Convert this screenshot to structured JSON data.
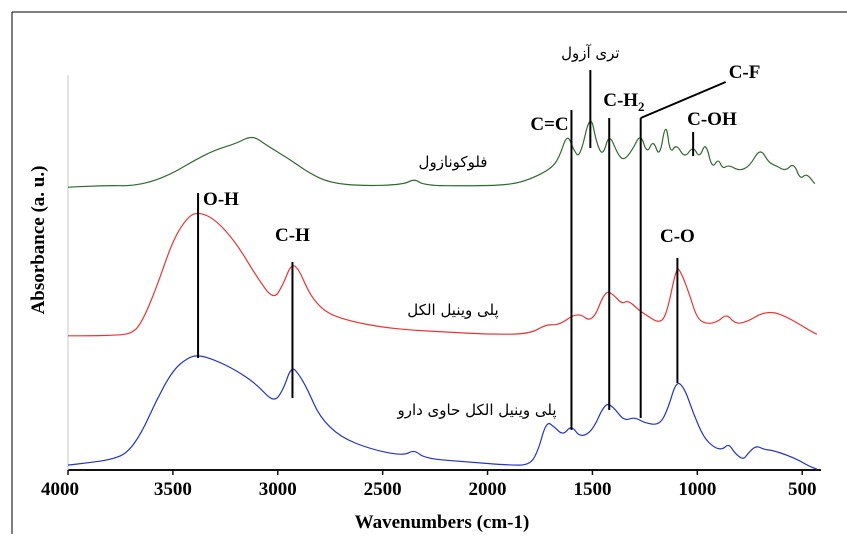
{
  "chart_data": {
    "type": "line",
    "xlabel": "Wavenumbers (cm-1)",
    "ylabel": "Absorbance (a. u.)",
    "xlim": [
      4000,
      420
    ],
    "x_reversed": true,
    "x_ticks": [
      "4000",
      "3500",
      "3000",
      "2500",
      "2000",
      "1500",
      "1000",
      "500"
    ],
    "x_tick_values": [
      4000,
      3500,
      3000,
      2500,
      2000,
      1500,
      1000,
      500
    ],
    "ylim": [
      0,
      1
    ],
    "y_ticks_shown": false,
    "grid": false,
    "series": [
      {
        "name": "فلوکونازول",
        "color": "#2e6b2e",
        "points": [
          [
            4000,
            0.702
          ],
          [
            3900,
            0.704
          ],
          [
            3800,
            0.706
          ],
          [
            3700,
            0.705
          ],
          [
            3600,
            0.715
          ],
          [
            3500,
            0.735
          ],
          [
            3400,
            0.765
          ],
          [
            3300,
            0.79
          ],
          [
            3200,
            0.805
          ],
          [
            3120,
            0.825
          ],
          [
            3050,
            0.8
          ],
          [
            2950,
            0.77
          ],
          [
            2850,
            0.735
          ],
          [
            2750,
            0.712
          ],
          [
            2600,
            0.705
          ],
          [
            2400,
            0.708
          ],
          [
            2350,
            0.722
          ],
          [
            2300,
            0.706
          ],
          [
            2100,
            0.705
          ],
          [
            1900,
            0.707
          ],
          [
            1800,
            0.72
          ],
          [
            1700,
            0.745
          ],
          [
            1660,
            0.77
          ],
          [
            1620,
            0.83
          ],
          [
            1590,
            0.79
          ],
          [
            1560,
            0.77
          ],
          [
            1510,
            0.88
          ],
          [
            1480,
            0.805
          ],
          [
            1450,
            0.775
          ],
          [
            1420,
            0.83
          ],
          [
            1380,
            0.78
          ],
          [
            1350,
            0.765
          ],
          [
            1310,
            0.79
          ],
          [
            1270,
            0.83
          ],
          [
            1240,
            0.78
          ],
          [
            1210,
            0.815
          ],
          [
            1180,
            0.77
          ],
          [
            1150,
            0.86
          ],
          [
            1130,
            0.78
          ],
          [
            1100,
            0.805
          ],
          [
            1060,
            0.77
          ],
          [
            1020,
            0.8
          ],
          [
            990,
            0.77
          ],
          [
            960,
            0.81
          ],
          [
            930,
            0.745
          ],
          [
            900,
            0.77
          ],
          [
            880,
            0.745
          ],
          [
            850,
            0.755
          ],
          [
            800,
            0.74
          ],
          [
            750,
            0.752
          ],
          [
            700,
            0.795
          ],
          [
            660,
            0.76
          ],
          [
            620,
            0.752
          ],
          [
            580,
            0.74
          ],
          [
            540,
            0.76
          ],
          [
            510,
            0.72
          ],
          [
            480,
            0.735
          ],
          [
            440,
            0.71
          ]
        ]
      },
      {
        "name": "پلی وینیل الکل",
        "color": "#ee3333",
        "points": [
          [
            4000,
            0.348
          ],
          [
            3900,
            0.348
          ],
          [
            3800,
            0.349
          ],
          [
            3700,
            0.352
          ],
          [
            3650,
            0.38
          ],
          [
            3580,
            0.47
          ],
          [
            3500,
            0.595
          ],
          [
            3430,
            0.655
          ],
          [
            3380,
            0.668
          ],
          [
            3300,
            0.65
          ],
          [
            3200,
            0.59
          ],
          [
            3100,
            0.5
          ],
          [
            3020,
            0.44
          ],
          [
            2975,
            0.48
          ],
          [
            2935,
            0.535
          ],
          [
            2900,
            0.52
          ],
          [
            2860,
            0.47
          ],
          [
            2820,
            0.435
          ],
          [
            2760,
            0.405
          ],
          [
            2650,
            0.385
          ],
          [
            2500,
            0.37
          ],
          [
            2350,
            0.362
          ],
          [
            2200,
            0.358
          ],
          [
            2000,
            0.352
          ],
          [
            1800,
            0.352
          ],
          [
            1720,
            0.378
          ],
          [
            1660,
            0.375
          ],
          [
            1570,
            0.41
          ],
          [
            1500,
            0.38
          ],
          [
            1440,
            0.465
          ],
          [
            1400,
            0.455
          ],
          [
            1360,
            0.43
          ],
          [
            1330,
            0.44
          ],
          [
            1280,
            0.415
          ],
          [
            1240,
            0.4
          ],
          [
            1180,
            0.38
          ],
          [
            1145,
            0.405
          ],
          [
            1100,
            0.525
          ],
          [
            1080,
            0.515
          ],
          [
            1040,
            0.46
          ],
          [
            1000,
            0.39
          ],
          [
            950,
            0.378
          ],
          [
            900,
            0.385
          ],
          [
            860,
            0.405
          ],
          [
            820,
            0.378
          ],
          [
            760,
            0.385
          ],
          [
            700,
            0.405
          ],
          [
            640,
            0.41
          ],
          [
            580,
            0.398
          ],
          [
            520,
            0.38
          ],
          [
            460,
            0.36
          ],
          [
            430,
            0.352
          ]
        ]
      },
      {
        "name": "پلی وینیل الکل حاوی دارو",
        "color": "#2233cc",
        "points": [
          [
            4000,
            0.012
          ],
          [
            3900,
            0.018
          ],
          [
            3800,
            0.025
          ],
          [
            3720,
            0.04
          ],
          [
            3650,
            0.09
          ],
          [
            3580,
            0.17
          ],
          [
            3500,
            0.245
          ],
          [
            3430,
            0.275
          ],
          [
            3380,
            0.282
          ],
          [
            3300,
            0.27
          ],
          [
            3200,
            0.245
          ],
          [
            3100,
            0.21
          ],
          [
            3020,
            0.165
          ],
          [
            2975,
            0.195
          ],
          [
            2935,
            0.255
          ],
          [
            2900,
            0.235
          ],
          [
            2860,
            0.2
          ],
          [
            2800,
            0.13
          ],
          [
            2700,
            0.08
          ],
          [
            2550,
            0.05
          ],
          [
            2400,
            0.035
          ],
          [
            2350,
            0.05
          ],
          [
            2300,
            0.028
          ],
          [
            2100,
            0.02
          ],
          [
            1900,
            0.012
          ],
          [
            1800,
            0.012
          ],
          [
            1760,
            0.045
          ],
          [
            1720,
            0.12
          ],
          [
            1680,
            0.105
          ],
          [
            1640,
            0.085
          ],
          [
            1600,
            0.11
          ],
          [
            1560,
            0.08
          ],
          [
            1500,
            0.095
          ],
          [
            1440,
            0.165
          ],
          [
            1400,
            0.155
          ],
          [
            1350,
            0.12
          ],
          [
            1300,
            0.13
          ],
          [
            1250,
            0.115
          ],
          [
            1180,
            0.11
          ],
          [
            1140,
            0.15
          ],
          [
            1100,
            0.22
          ],
          [
            1060,
            0.2
          ],
          [
            1020,
            0.14
          ],
          [
            970,
            0.08
          ],
          [
            920,
            0.055
          ],
          [
            880,
            0.05
          ],
          [
            850,
            0.065
          ],
          [
            820,
            0.04
          ],
          [
            780,
            0.025
          ],
          [
            760,
            0.04
          ],
          [
            720,
            0.06
          ],
          [
            680,
            0.05
          ],
          [
            640,
            0.048
          ],
          [
            580,
            0.038
          ],
          [
            520,
            0.025
          ],
          [
            470,
            0.01
          ],
          [
            430,
            0.002
          ]
        ]
      }
    ],
    "annotations": [
      {
        "label": "O-H",
        "x": 3380
      },
      {
        "label": "C-H",
        "x": 2930
      },
      {
        "label": "C=C",
        "x": 1600
      },
      {
        "label": "تری آزول",
        "x": 1510
      },
      {
        "label": "C-H2",
        "base": "C-H",
        "sub": "2",
        "x": 1420
      },
      {
        "label": "C-F",
        "x": 1270
      },
      {
        "label": "C-OH",
        "x": 1020
      },
      {
        "label": "C-O",
        "x": 1095
      }
    ]
  }
}
